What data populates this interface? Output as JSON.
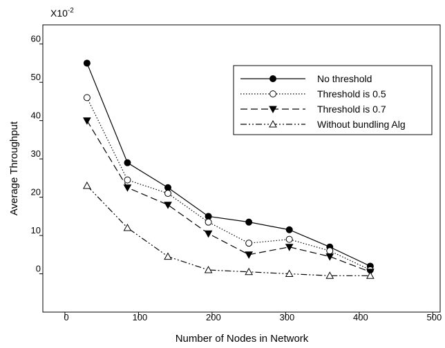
{
  "chart_data": {
    "type": "line",
    "title": "",
    "scale_label_base": "X10",
    "scale_label_exp": "-2",
    "xlabel": "Number of Nodes in Network",
    "ylabel": "Average Throughput",
    "xlim": [
      -30,
      510
    ],
    "ylim": [
      -10,
      65
    ],
    "x_ticks": [
      0,
      100,
      200,
      300,
      400,
      500
    ],
    "y_ticks": [
      0,
      10,
      20,
      30,
      40,
      50,
      60
    ],
    "legend_position": "top-right",
    "x": [
      30,
      85,
      140,
      195,
      250,
      305,
      360,
      415
    ],
    "series": [
      {
        "name": "No threshold",
        "marker": "filled-circle",
        "dash": "",
        "values": [
          55,
          29,
          22.5,
          15,
          13.5,
          11.5,
          7,
          2
        ]
      },
      {
        "name": "Threshold is 0.5",
        "marker": "open-circle",
        "dash": "1.5 2.5",
        "values": [
          46,
          24.5,
          21,
          13.5,
          8,
          9,
          6,
          1
        ]
      },
      {
        "name": "Threshold is 0.7",
        "marker": "filled-triangle-down",
        "dash": "10 5",
        "values": [
          40,
          22.5,
          18,
          10.5,
          5,
          7,
          4.5,
          0.5
        ]
      },
      {
        "name": "Without bundling Alg",
        "marker": "open-triangle-up",
        "dash": "9 3 2 3 2 3",
        "values": [
          23,
          12,
          4.5,
          1,
          0.5,
          0,
          -0.5,
          -0.5
        ]
      }
    ]
  }
}
